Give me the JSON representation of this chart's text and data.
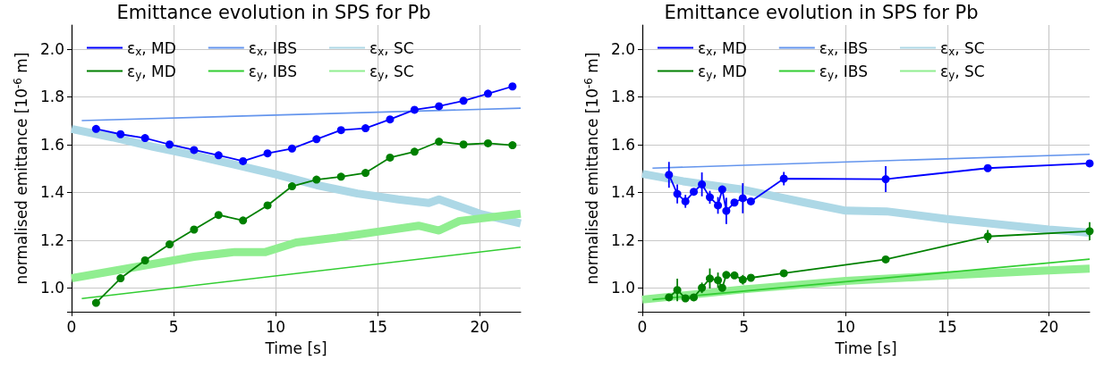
{
  "chart_data": [
    {
      "type": "line",
      "title": "Emittance evolution in SPS for Pb",
      "xlabel": "Time [s]",
      "ylabel": "normalised emittance [10$^{-6}$ m]",
      "xlim": [
        0,
        22
      ],
      "xticks": [
        0,
        5,
        10,
        15,
        20
      ],
      "ylim": [
        0.9,
        2.1
      ],
      "yticks": [
        {
          "value": 0.9,
          "label": null
        },
        {
          "value": 1,
          "label": "1.0"
        },
        1.2,
        1.4,
        1.6,
        1.8,
        {
          "value": 2,
          "label": "2.0"
        }
      ],
      "grid": true,
      "legend": "top",
      "series": [
        {
          "name": "ε$_{x}$, MD",
          "color": "#0000ff",
          "marker": "circle",
          "x": [
            1.2,
            2.4,
            3.6,
            4.8,
            6.0,
            7.2,
            8.4,
            9.6,
            10.8,
            12.0,
            13.2,
            14.4,
            15.6,
            16.8,
            18.0,
            19.2,
            20.4,
            21.6
          ],
          "values": [
            1.665,
            1.643,
            1.627,
            1.6,
            1.577,
            1.555,
            1.53,
            1.563,
            1.583,
            1.622,
            1.66,
            1.668,
            1.705,
            1.745,
            1.76,
            1.783,
            1.813,
            1.843
          ]
        },
        {
          "name": "ε$_{y}$, MD",
          "color": "#008000",
          "marker": "circle",
          "x": [
            1.2,
            2.4,
            3.6,
            4.8,
            6.0,
            7.2,
            8.4,
            9.6,
            10.8,
            12.0,
            13.2,
            14.4,
            15.6,
            16.8,
            18.0,
            19.2,
            20.4,
            21.6
          ],
          "values": [
            0.937,
            1.04,
            1.115,
            1.182,
            1.244,
            1.305,
            1.282,
            1.345,
            1.425,
            1.453,
            1.465,
            1.481,
            1.545,
            1.57,
            1.612,
            1.6,
            1.605,
            1.597
          ]
        },
        {
          "name": "ε$_{x}$, IBS",
          "color": "#6495ed",
          "x": [
            0.5,
            22
          ],
          "values": [
            1.7,
            1.752
          ]
        },
        {
          "name": "ε$_{y}$, IBS",
          "color": "#32cd32",
          "x": [
            0.5,
            22
          ],
          "values": [
            0.955,
            1.17
          ]
        },
        {
          "name": "ε$_{x}$, SC",
          "color": "#add8e6",
          "x": [
            0,
            2,
            4,
            6,
            8,
            10,
            12,
            14,
            16,
            17.5,
            18,
            20,
            22
          ],
          "values": [
            1.665,
            1.63,
            1.59,
            1.555,
            1.515,
            1.475,
            1.43,
            1.395,
            1.37,
            1.355,
            1.37,
            1.31,
            1.27
          ]
        },
        {
          "name": "ε$_{y}$, SC",
          "color": "#90ee90",
          "x": [
            0,
            2,
            4,
            6,
            8,
            9.5,
            11,
            13,
            15,
            17,
            18,
            19,
            22
          ],
          "values": [
            1.04,
            1.07,
            1.1,
            1.13,
            1.15,
            1.15,
            1.19,
            1.21,
            1.235,
            1.26,
            1.24,
            1.28,
            1.31
          ]
        }
      ]
    },
    {
      "type": "line",
      "title": "Emittance evolution in SPS for Pb",
      "xlabel": "Time [s]",
      "ylabel": "normalised emittance [10$^{-6}$ m]",
      "xlim": [
        0,
        22
      ],
      "xticks": [
        0,
        5,
        10,
        15,
        20
      ],
      "ylim": [
        0.9,
        2.1
      ],
      "yticks": [
        {
          "value": 0.9,
          "label": null
        },
        {
          "value": 1,
          "label": "1.0"
        },
        1.2,
        1.4,
        1.6,
        1.8,
        {
          "value": 2,
          "label": "2.0"
        }
      ],
      "grid": true,
      "legend": "top",
      "series": [
        {
          "name": "ε$_{x}$, MD",
          "color": "#0000ff",
          "marker": "circle",
          "x": [
            1.31,
            1.72,
            2.12,
            2.53,
            2.93,
            3.32,
            3.72,
            3.93,
            4.13,
            4.53,
            4.94,
            5.34,
            6.96,
            11.97,
            16.99,
            22.0
          ],
          "values": [
            1.473,
            1.393,
            1.362,
            1.402,
            1.433,
            1.379,
            1.345,
            1.412,
            1.322,
            1.357,
            1.375,
            1.362,
            1.457,
            1.455,
            1.501,
            1.521
          ],
          "errors": [
            0.054,
            0.04,
            0.027,
            null,
            0.05,
            0.027,
            0.035,
            null,
            0.055,
            null,
            0.063,
            null,
            0.028,
            0.054,
            null,
            null
          ]
        },
        {
          "name": "ε$_{y}$, MD",
          "color": "#008000",
          "marker": "circle",
          "x": [
            1.31,
            1.72,
            2.12,
            2.53,
            2.93,
            3.32,
            3.72,
            3.93,
            4.13,
            4.53,
            4.94,
            5.34,
            6.96,
            11.97,
            16.99,
            22.0
          ],
          "values": [
            0.96,
            0.991,
            0.956,
            0.96,
            1.0,
            1.039,
            1.032,
            1.0,
            1.054,
            1.052,
            1.034,
            1.042,
            1.061,
            1.119,
            1.215,
            1.237
          ],
          "errors": [
            null,
            0.047,
            null,
            null,
            0.022,
            0.042,
            0.032,
            null,
            null,
            null,
            0.02,
            null,
            null,
            null,
            0.027,
            0.038
          ]
        },
        {
          "name": "ε$_{x}$, IBS",
          "color": "#6495ed",
          "x": [
            0.5,
            22
          ],
          "values": [
            1.501,
            1.559
          ]
        },
        {
          "name": "ε$_{y}$, IBS",
          "color": "#32cd32",
          "x": [
            0.5,
            22
          ],
          "values": [
            0.951,
            1.12
          ]
        },
        {
          "name": "ε$_{x}$, SC",
          "color": "#add8e6",
          "x": [
            0,
            2,
            5,
            8,
            10,
            12,
            15,
            20,
            22
          ],
          "values": [
            1.477,
            1.446,
            1.41,
            1.357,
            1.323,
            1.32,
            1.288,
            1.244,
            1.231
          ]
        },
        {
          "name": "ε$_{y}$, SC",
          "color": "#90ee90",
          "x": [
            0,
            5,
            10,
            15,
            20,
            22
          ],
          "values": [
            0.951,
            0.994,
            1.029,
            1.052,
            1.073,
            1.08
          ]
        }
      ]
    }
  ]
}
